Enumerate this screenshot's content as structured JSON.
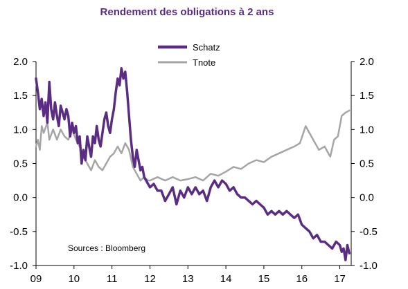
{
  "chart_data": {
    "type": "line",
    "title": "Rendement des obligations à 2 ans",
    "xlabel": "",
    "ylabel": "",
    "x_ticks": [
      "09",
      "10",
      "11",
      "12",
      "13",
      "14",
      "15",
      "16",
      "17"
    ],
    "y_ticks_left": [
      "2.0",
      "1.5",
      "1.0",
      "0.5",
      "0.0",
      "-0.5",
      "-1.0"
    ],
    "y_ticks_right": [
      "2.0",
      "1.5",
      "1.0",
      "0.5",
      "0.0",
      "-0.5",
      "-1.0"
    ],
    "xlim": [
      2009.0,
      2017.3
    ],
    "ylim": [
      -1.0,
      2.0
    ],
    "grid": false,
    "legend_position": "top-center",
    "source_note": "Sources : Bloomberg",
    "series": [
      {
        "name": "Schatz",
        "color": "#5a2d82",
        "x": [
          2009.0,
          2009.05,
          2009.1,
          2009.15,
          2009.2,
          2009.25,
          2009.3,
          2009.35,
          2009.4,
          2009.45,
          2009.5,
          2009.55,
          2009.6,
          2009.65,
          2009.7,
          2009.75,
          2009.8,
          2009.85,
          2009.9,
          2009.95,
          2010.0,
          2010.05,
          2010.1,
          2010.15,
          2010.2,
          2010.25,
          2010.3,
          2010.35,
          2010.4,
          2010.45,
          2010.5,
          2010.55,
          2010.6,
          2010.65,
          2010.7,
          2010.75,
          2010.8,
          2010.85,
          2010.9,
          2010.95,
          2011.0,
          2011.05,
          2011.1,
          2011.15,
          2011.2,
          2011.25,
          2011.3,
          2011.35,
          2011.4,
          2011.45,
          2011.5,
          2011.55,
          2011.6,
          2011.65,
          2011.7,
          2011.75,
          2011.8,
          2011.85,
          2011.9,
          2011.95,
          2012.0,
          2012.1,
          2012.2,
          2012.3,
          2012.4,
          2012.5,
          2012.6,
          2012.7,
          2012.8,
          2012.9,
          2013.0,
          2013.1,
          2013.2,
          2013.3,
          2013.4,
          2013.5,
          2013.6,
          2013.7,
          2013.8,
          2013.9,
          2014.0,
          2014.1,
          2014.2,
          2014.3,
          2014.4,
          2014.5,
          2014.6,
          2014.7,
          2014.8,
          2014.9,
          2015.0,
          2015.1,
          2015.2,
          2015.3,
          2015.4,
          2015.5,
          2015.6,
          2015.7,
          2015.8,
          2015.9,
          2016.0,
          2016.1,
          2016.2,
          2016.3,
          2016.4,
          2016.5,
          2016.6,
          2016.7,
          2016.8,
          2016.9,
          2017.0,
          2017.05,
          2017.1,
          2017.15,
          2017.2,
          2017.25
        ],
        "values": [
          1.75,
          1.55,
          1.3,
          1.45,
          1.2,
          1.4,
          1.1,
          1.7,
          1.3,
          1.15,
          1.4,
          1.2,
          1.05,
          1.35,
          1.25,
          1.15,
          1.3,
          1.2,
          0.9,
          1.1,
          0.95,
          1.05,
          0.8,
          0.9,
          0.5,
          0.7,
          0.55,
          0.9,
          0.75,
          0.6,
          0.9,
          0.8,
          1.05,
          0.85,
          0.75,
          0.95,
          1.15,
          1.25,
          1.05,
          0.95,
          1.15,
          1.3,
          1.55,
          1.75,
          1.65,
          1.9,
          1.75,
          1.85,
          1.55,
          1.2,
          0.85,
          0.6,
          0.45,
          0.7,
          0.55,
          0.4,
          0.45,
          0.3,
          0.25,
          0.2,
          0.15,
          0.2,
          0.1,
          0.1,
          -0.05,
          0.05,
          0.15,
          -0.1,
          0.1,
          0.0,
          0.15,
          0.05,
          0.15,
          0.05,
          0.1,
          -0.05,
          0.15,
          0.25,
          0.15,
          0.25,
          0.2,
          0.1,
          0.15,
          0.05,
          0.0,
          0.0,
          -0.05,
          -0.1,
          -0.05,
          -0.1,
          -0.15,
          -0.25,
          -0.2,
          -0.25,
          -0.2,
          -0.25,
          -0.2,
          -0.25,
          -0.3,
          -0.25,
          -0.4,
          -0.45,
          -0.5,
          -0.6,
          -0.55,
          -0.65,
          -0.65,
          -0.7,
          -0.75,
          -0.65,
          -0.7,
          -0.8,
          -0.75,
          -0.92,
          -0.7,
          -0.82
        ]
      },
      {
        "name": "Tnote",
        "color": "#a5a5a5",
        "x": [
          2009.0,
          2009.05,
          2009.1,
          2009.15,
          2009.2,
          2009.3,
          2009.35,
          2009.45,
          2009.55,
          2009.65,
          2009.75,
          2009.85,
          2009.95,
          2010.05,
          2010.15,
          2010.25,
          2010.35,
          2010.45,
          2010.55,
          2010.65,
          2010.75,
          2010.85,
          2010.95,
          2011.05,
          2011.15,
          2011.25,
          2011.35,
          2011.45,
          2011.55,
          2011.65,
          2011.75,
          2011.85,
          2011.95,
          2012.0,
          2012.2,
          2012.4,
          2012.6,
          2012.8,
          2013.0,
          2013.2,
          2013.4,
          2013.6,
          2013.8,
          2014.0,
          2014.2,
          2014.4,
          2014.6,
          2014.8,
          2015.0,
          2015.2,
          2015.4,
          2015.6,
          2015.8,
          2015.95,
          2016.1,
          2016.3,
          2016.45,
          2016.6,
          2016.75,
          2016.85,
          2016.95,
          2017.05,
          2017.15,
          2017.25
        ],
        "values": [
          0.75,
          0.85,
          0.7,
          1.05,
          0.95,
          1.1,
          0.85,
          1.0,
          0.85,
          1.0,
          0.9,
          0.85,
          1.0,
          0.85,
          0.75,
          0.6,
          0.5,
          0.4,
          0.55,
          0.45,
          0.4,
          0.5,
          0.6,
          0.65,
          0.75,
          0.65,
          0.8,
          0.7,
          0.45,
          0.35,
          0.25,
          0.3,
          0.25,
          0.25,
          0.3,
          0.25,
          0.3,
          0.25,
          0.27,
          0.3,
          0.25,
          0.35,
          0.32,
          0.38,
          0.45,
          0.42,
          0.5,
          0.55,
          0.52,
          0.6,
          0.65,
          0.7,
          0.75,
          0.8,
          1.05,
          0.85,
          0.7,
          0.75,
          0.6,
          0.85,
          0.9,
          1.2,
          1.25,
          1.28
        ]
      }
    ]
  }
}
